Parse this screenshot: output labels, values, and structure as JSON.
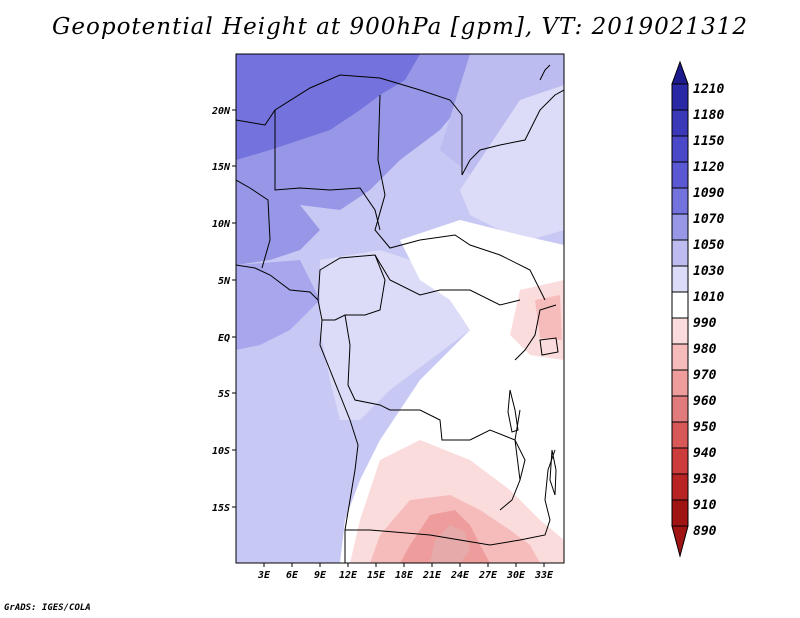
{
  "title": "Geopotential Height at 900hPa [gpm], VT: 2019021312",
  "credit": "GrADS: IGES/COLA",
  "map": {
    "lat_labels": [
      "20N",
      "15N",
      "10N",
      "5N",
      "EQ",
      "5S",
      "10S",
      "15S"
    ],
    "lon_labels": [
      "3E",
      "6E",
      "9E",
      "12E",
      "15E",
      "18E",
      "21E",
      "24E",
      "27E",
      "30E",
      "33E"
    ]
  },
  "colorbar": {
    "labels": [
      "1210",
      "1180",
      "1150",
      "1120",
      "1090",
      "1070",
      "1050",
      "1030",
      "1010",
      "990",
      "980",
      "970",
      "960",
      "950",
      "940",
      "930",
      "910",
      "890"
    ],
    "colors": [
      "#1c1a8c",
      "#2a28a6",
      "#3a38b8",
      "#4a48c8",
      "#5a58d2",
      "#7472dc",
      "#9896e6",
      "#bcbcf0",
      "#dcdcf8",
      "#ffffff",
      "#fbdcdc",
      "#f6bcbc",
      "#ee9c9c",
      "#e27c7c",
      "#d85858",
      "#cc3c3c",
      "#b82424",
      "#a01414"
    ]
  }
}
